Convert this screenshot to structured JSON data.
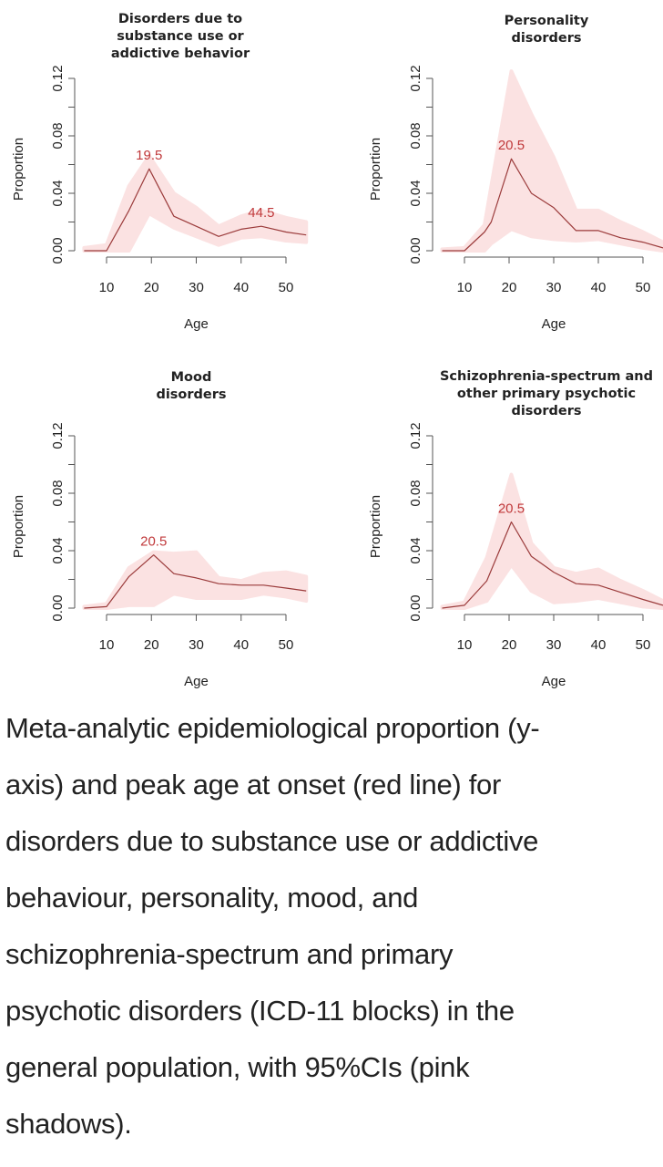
{
  "figure": {
    "colors": {
      "line": "#9b3b3b",
      "ci_fill": "#fbe1e1",
      "peak_label": "#c0393b",
      "axis": "#555555"
    }
  },
  "chart_data": [
    {
      "type": "area",
      "title_lines": [
        "Disorders due to",
        "substance use or",
        "addictive behavior"
      ],
      "xlabel": "Age",
      "ylabel": "Proportion",
      "xticks": [
        10,
        20,
        30,
        40,
        50
      ],
      "xtick_labels": [
        "10",
        "20",
        "30",
        "40",
        "50"
      ],
      "yticks": [
        0,
        0.02,
        0.04,
        0.06,
        0.08,
        0.1,
        0.12
      ],
      "ytick_labels": [
        "0.00",
        "",
        "0.04",
        "",
        "0.08",
        "",
        "0.12"
      ],
      "xlim": [
        5,
        54.5
      ],
      "ylim": [
        0,
        0.12
      ],
      "grid": false,
      "series": [
        {
          "name": "Proportion (peak age at onset)",
          "x": [
            5,
            10,
            15,
            19.5,
            25,
            30,
            35,
            40,
            44.5,
            50,
            54.5
          ],
          "y": [
            0,
            0,
            0.028,
            0.057,
            0.024,
            0.017,
            0.01,
            0.015,
            0.017,
            0.013,
            0.011
          ],
          "ci_lower": [
            0,
            0,
            0,
            0.026,
            0.016,
            0.01,
            0.004,
            0.009,
            0.01,
            0.007,
            0.006
          ],
          "ci_upper": [
            0.002,
            0.004,
            0.045,
            0.066,
            0.04,
            0.03,
            0.017,
            0.024,
            0.028,
            0.023,
            0.02
          ]
        }
      ],
      "annotations": [
        {
          "text": "19.5",
          "x": 19.5,
          "y": 0.057
        },
        {
          "text": "44.5",
          "x": 44.5,
          "y": 0.017
        }
      ]
    },
    {
      "type": "area",
      "title_lines": [
        "Personality",
        "disorders"
      ],
      "xlabel": "Age",
      "ylabel": "Proportion",
      "xticks": [
        10,
        20,
        30,
        40,
        50
      ],
      "xtick_labels": [
        "10",
        "20",
        "30",
        "40",
        "50"
      ],
      "yticks": [
        0,
        0.02,
        0.04,
        0.06,
        0.08,
        0.1,
        0.12
      ],
      "ytick_labels": [
        "0.00",
        "",
        "0.04",
        "",
        "0.08",
        "",
        "0.12"
      ],
      "xlim": [
        5,
        54.5
      ],
      "ylim": [
        0,
        0.12
      ],
      "grid": false,
      "series": [
        {
          "name": "Proportion (peak age at onset)",
          "x": [
            5,
            10,
            14.5,
            16,
            20.5,
            25,
            30,
            35,
            40,
            45,
            50,
            54.5
          ],
          "y": [
            0,
            0,
            0.013,
            0.02,
            0.064,
            0.04,
            0.03,
            0.014,
            0.014,
            0.009,
            0.006,
            0.002
          ],
          "ci_lower": [
            0,
            0,
            0,
            0.005,
            0.015,
            0.01,
            0.008,
            0.007,
            0.008,
            0.005,
            0.002,
            0
          ],
          "ci_upper": [
            0.001,
            0.002,
            0.018,
            0.045,
            0.125,
            0.095,
            0.065,
            0.028,
            0.028,
            0.02,
            0.013,
            0.006
          ]
        }
      ],
      "annotations": [
        {
          "text": "20.5",
          "x": 20.5,
          "y": 0.064
        }
      ]
    },
    {
      "type": "area",
      "title_lines": [
        "Mood",
        "disorders"
      ],
      "xlabel": "Age",
      "ylabel": "Proportion",
      "xticks": [
        10,
        20,
        30,
        40,
        50
      ],
      "xtick_labels": [
        "10",
        "20",
        "30",
        "40",
        "50"
      ],
      "yticks": [
        0,
        0.02,
        0.04,
        0.06,
        0.08,
        0.1,
        0.12
      ],
      "ytick_labels": [
        "0.00",
        "",
        "0.04",
        "",
        "0.08",
        "",
        "0.12"
      ],
      "xlim": [
        5,
        54.5
      ],
      "ylim": [
        0,
        0.12
      ],
      "grid": false,
      "series": [
        {
          "name": "Proportion (peak age at onset)",
          "x": [
            5,
            10,
            15,
            20.5,
            25,
            30,
            35,
            40,
            45,
            50,
            54.5
          ],
          "y": [
            0,
            0.001,
            0.022,
            0.037,
            0.024,
            0.021,
            0.017,
            0.016,
            0.016,
            0.014,
            0.012
          ],
          "ci_lower": [
            0,
            0,
            0.002,
            0.002,
            0.01,
            0.007,
            0.007,
            0.007,
            0.01,
            0.008,
            0.005
          ],
          "ci_upper": [
            0.001,
            0.003,
            0.028,
            0.039,
            0.038,
            0.039,
            0.021,
            0.019,
            0.024,
            0.025,
            0.022
          ]
        }
      ],
      "annotations": [
        {
          "text": "20.5",
          "x": 20.5,
          "y": 0.037
        }
      ]
    },
    {
      "type": "area",
      "title_lines": [
        "Schizophrenia-spectrum and",
        "other primary psychotic",
        "disorders"
      ],
      "xlabel": "Age",
      "ylabel": "Proportion",
      "xticks": [
        10,
        20,
        30,
        40,
        50
      ],
      "xtick_labels": [
        "10",
        "20",
        "30",
        "40",
        "50"
      ],
      "yticks": [
        0,
        0.02,
        0.04,
        0.06,
        0.08,
        0.1,
        0.12
      ],
      "ytick_labels": [
        "0.00",
        "",
        "0.04",
        "",
        "0.08",
        "",
        "0.12"
      ],
      "xlim": [
        5,
        54.5
      ],
      "ylim": [
        0,
        0.12
      ],
      "grid": false,
      "series": [
        {
          "name": "Proportion (peak age at onset)",
          "x": [
            5,
            10,
            15,
            20.5,
            25,
            30,
            35,
            40,
            45,
            50,
            54.5
          ],
          "y": [
            0,
            0.002,
            0.019,
            0.06,
            0.036,
            0.025,
            0.017,
            0.016,
            0.011,
            0.006,
            0.002
          ],
          "ci_lower": [
            0,
            0,
            0.005,
            0.03,
            0.012,
            0.004,
            0.005,
            0.007,
            0.004,
            0.001,
            0
          ],
          "ci_upper": [
            0.001,
            0.004,
            0.035,
            0.093,
            0.045,
            0.028,
            0.024,
            0.027,
            0.019,
            0.012,
            0.005
          ]
        }
      ],
      "annotations": [
        {
          "text": "20.5",
          "x": 20.5,
          "y": 0.06
        }
      ]
    }
  ],
  "caption": {
    "lines": [
      "Meta-analytic epidemiological proportion (y-",
      "axis) and peak age at onset (red line) for",
      "disorders due to substance use or addictive",
      "behaviour, personality, mood, and",
      "schizophrenia-spectrum and primary",
      "psychotic disorders (ICD-11 blocks) in the",
      "general population, with 95%CIs (pink",
      "shadows)."
    ]
  }
}
